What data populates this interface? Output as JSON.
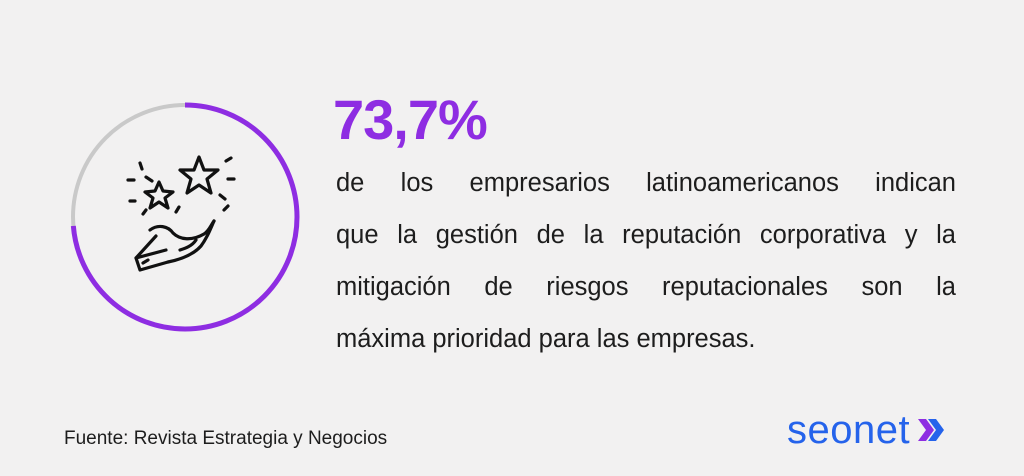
{
  "stat": {
    "value_text": "73,7%",
    "ring_fraction": 0.737
  },
  "description": {
    "lines": [
      "de los empresarios latinoamericanos indican",
      "que la gestión de la reputación corporativa y la",
      "mitigación de riesgos reputacionales son la",
      "máxima prioridad para las empresas."
    ]
  },
  "source": "Fuente: Revista Estrategia y Negocios",
  "logo": {
    "text": "seonet"
  },
  "icon": "hand-holding-stars-icon",
  "colors": {
    "accent": "#8e2de2",
    "ring_track": "#c9c9c9",
    "logo_blue": "#2563eb",
    "chevron_purple": "#8e2de2",
    "background": "#f2f1f1",
    "text": "#1d1d1d"
  }
}
